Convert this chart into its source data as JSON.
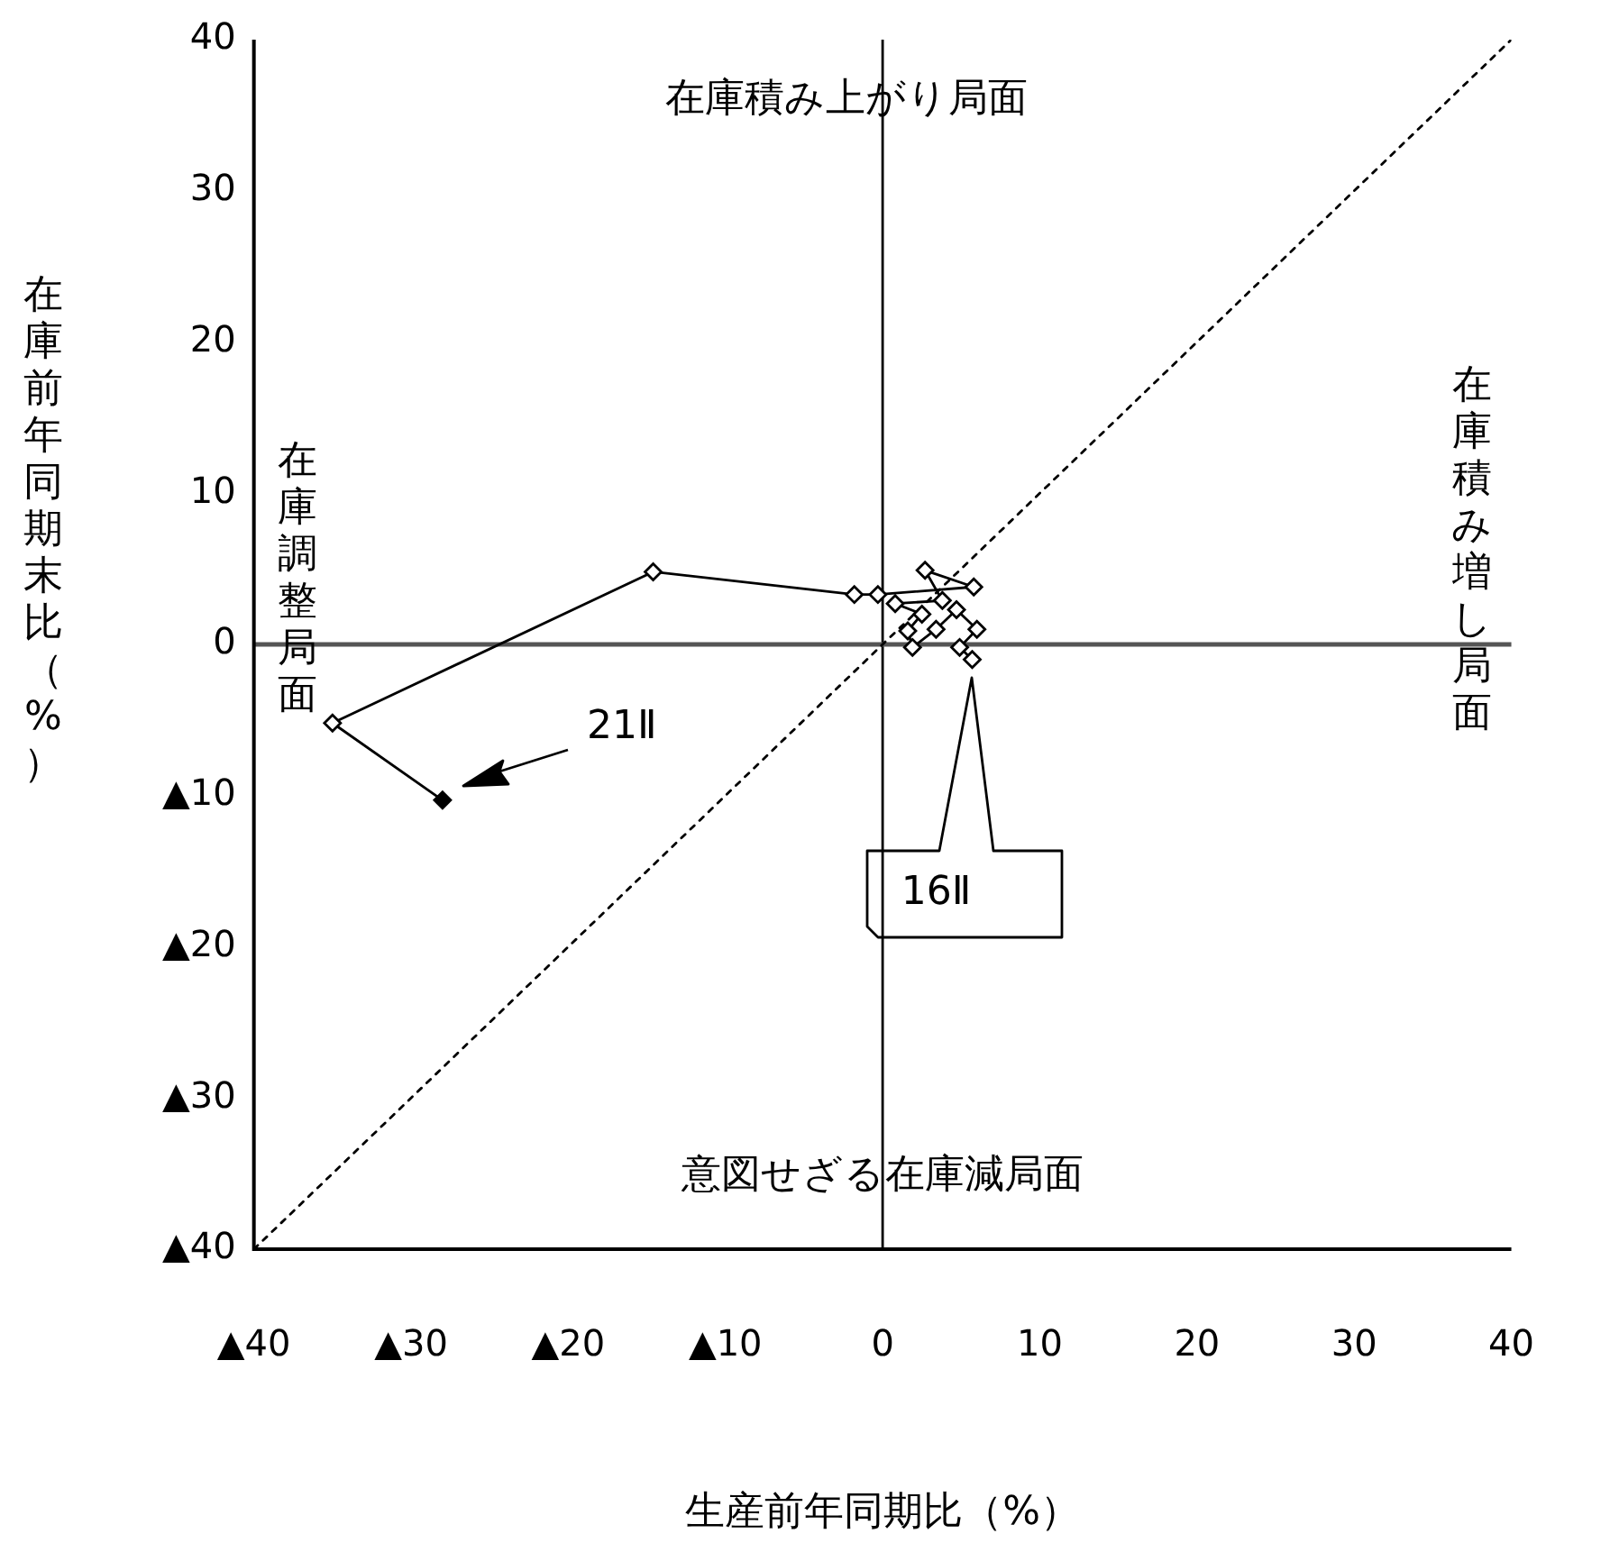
{
  "chart_data": {
    "type": "scatter",
    "xlabel": "生産前年同期比（%）",
    "ylabel": "在庫前年同期末比（%）",
    "xlim": [
      -40,
      40
    ],
    "ylim": [
      -40,
      40
    ],
    "xticks": [
      {
        "value": -40,
        "label": "▲40"
      },
      {
        "value": -30,
        "label": "▲30"
      },
      {
        "value": -20,
        "label": "▲20"
      },
      {
        "value": -10,
        "label": "▲10"
      },
      0,
      10,
      20,
      30,
      40
    ],
    "yticks": [
      {
        "value": -40,
        "label": "▲40"
      },
      {
        "value": -30,
        "label": "▲30"
      },
      {
        "value": -20,
        "label": "▲20"
      },
      {
        "value": -10,
        "label": "▲10"
      },
      0,
      10,
      20,
      30,
      40
    ],
    "grid": false,
    "legend": false,
    "series": [
      {
        "type": "line",
        "color": "#000000",
        "marker": "diamond",
        "line_style": "solid",
        "x": [
          5.7,
          4.9,
          6.0,
          4.7,
          3.4,
          1.9,
          1.6,
          2.5,
          0.8,
          3.8,
          2.7,
          5.8,
          -0.3,
          -1.8,
          -14.6,
          -35,
          -28
        ],
        "values": [
          -1.0,
          -0.2,
          1.0,
          2.3,
          1.0,
          -0.2,
          0.9,
          2.0,
          2.7,
          2.9,
          4.9,
          3.8,
          3.3,
          3.3,
          4.8,
          -5.2,
          -10.3
        ],
        "colors": [
          "#ffffff",
          "#ffffff",
          "#ffffff",
          "#ffffff",
          "#ffffff",
          "#ffffff",
          "#ffffff",
          "#ffffff",
          "#ffffff",
          "#ffffff",
          "#ffffff",
          "#ffffff",
          "#ffffff",
          "#ffffff",
          "#ffffff",
          "#ffffff",
          "#000000"
        ]
      },
      {
        "type": "line",
        "color": "#000000",
        "marker": "none",
        "line_style": "dotted",
        "x": [
          -40,
          40
        ],
        "values": [
          -40,
          40
        ]
      }
    ],
    "ref_lines": [
      {
        "axis": "x",
        "value": 0,
        "color": "#000000"
      },
      {
        "axis": "y",
        "value": 0,
        "color": "#555555"
      }
    ],
    "annotations": [
      "在庫積み上がり局面",
      "在庫調整局面",
      "在庫積み増し局面",
      "意図せざる在庫減局面",
      "21Ⅱ",
      "16Ⅱ"
    ]
  }
}
